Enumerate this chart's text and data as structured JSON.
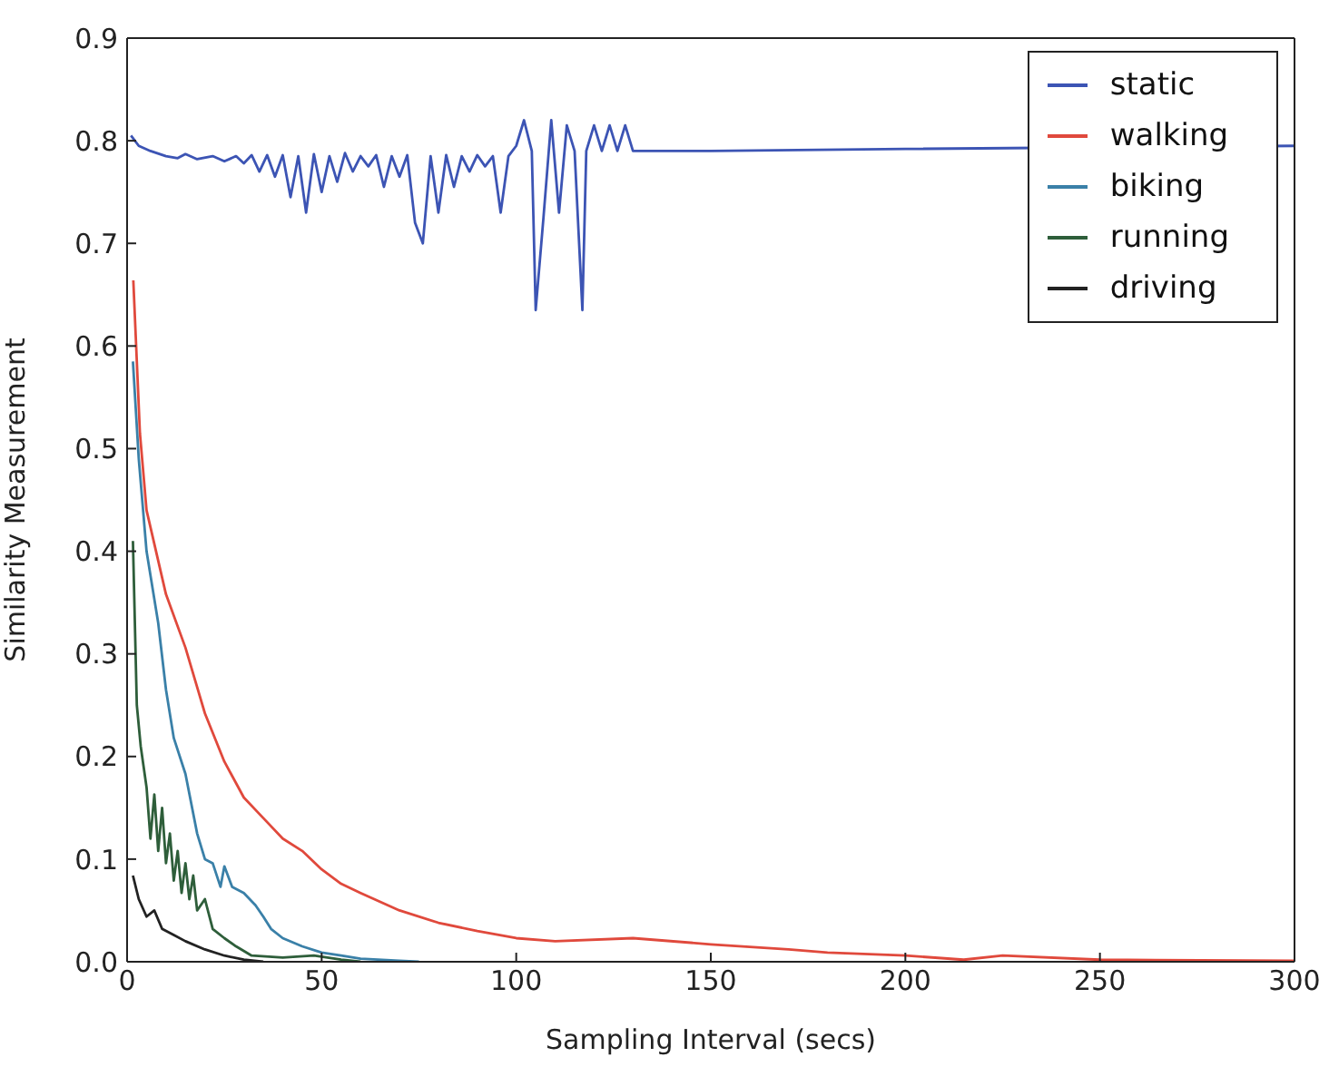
{
  "chart_data": {
    "type": "line",
    "xlabel": "Sampling Interval (secs)",
    "ylabel": "Similarity Measurement",
    "xlim": [
      0,
      300
    ],
    "xticks": [
      0,
      50,
      100,
      150,
      200,
      250,
      300
    ],
    "ylim": [
      0,
      0.9
    ],
    "yticks": [
      {
        "value": 0,
        "label": "0.0"
      },
      0.1,
      0.2,
      0.3,
      0.4,
      0.5,
      0.6,
      0.7,
      0.8,
      0.9
    ],
    "legend": "top right",
    "grid": false,
    "marker": "none",
    "series": [
      {
        "name": "static",
        "color": "#3c54b4",
        "x": [
          1,
          3,
          6,
          10,
          13,
          15,
          18,
          22,
          25,
          28,
          30,
          32,
          34,
          36,
          38,
          40,
          42,
          44,
          46,
          48,
          50,
          52,
          54,
          56,
          58,
          60,
          62,
          64,
          66,
          68,
          70,
          72,
          74,
          76,
          78,
          80,
          82,
          84,
          86,
          88,
          90,
          92,
          94,
          96,
          98,
          100,
          102,
          104,
          105,
          107,
          109,
          111,
          113,
          115,
          117,
          118,
          120,
          122,
          124,
          126,
          128,
          130,
          150,
          200,
          300
        ],
        "values": [
          0.805,
          0.795,
          0.79,
          0.785,
          0.783,
          0.787,
          0.782,
          0.785,
          0.78,
          0.785,
          0.778,
          0.786,
          0.77,
          0.786,
          0.765,
          0.786,
          0.745,
          0.785,
          0.73,
          0.787,
          0.75,
          0.785,
          0.76,
          0.788,
          0.77,
          0.785,
          0.775,
          0.786,
          0.755,
          0.785,
          0.765,
          0.786,
          0.72,
          0.7,
          0.785,
          0.73,
          0.786,
          0.755,
          0.785,
          0.77,
          0.786,
          0.775,
          0.785,
          0.73,
          0.785,
          0.795,
          0.82,
          0.79,
          0.635,
          0.725,
          0.82,
          0.73,
          0.815,
          0.79,
          0.635,
          0.79,
          0.815,
          0.79,
          0.815,
          0.79,
          0.815,
          0.79,
          0.79,
          0.792,
          0.795
        ]
      },
      {
        "name": "walking",
        "color": "#e0493c",
        "x": [
          1.6,
          3.3,
          5,
          10,
          15,
          20,
          25,
          30,
          35,
          40,
          45,
          50,
          55,
          60,
          70,
          80,
          90,
          100,
          110,
          130,
          150,
          170,
          180,
          200,
          215,
          225,
          250,
          300
        ],
        "values": [
          0.664,
          0.515,
          0.44,
          0.358,
          0.306,
          0.242,
          0.195,
          0.16,
          0.14,
          0.12,
          0.108,
          0.09,
          0.076,
          0.067,
          0.05,
          0.038,
          0.03,
          0.023,
          0.02,
          0.023,
          0.017,
          0.012,
          0.009,
          0.006,
          0.002,
          0.006,
          0.002,
          0.001
        ]
      },
      {
        "name": "biking",
        "color": "#3a80a8",
        "x": [
          1.5,
          3,
          5,
          8,
          10,
          12,
          15,
          18,
          20,
          22,
          24,
          25,
          27,
          30,
          33,
          35,
          37,
          40,
          45,
          50,
          55,
          60,
          70,
          75
        ],
        "values": [
          0.585,
          0.49,
          0.4,
          0.33,
          0.265,
          0.218,
          0.183,
          0.125,
          0.1,
          0.096,
          0.073,
          0.093,
          0.073,
          0.067,
          0.055,
          0.044,
          0.032,
          0.023,
          0.015,
          0.009,
          0.006,
          0.003,
          0.001,
          0.0
        ]
      },
      {
        "name": "running",
        "color": "#2e5e3a",
        "x": [
          1.5,
          2.5,
          3.5,
          5,
          6,
          7,
          8,
          9,
          10,
          11,
          12,
          13,
          14,
          15,
          16,
          17,
          18,
          20,
          22,
          25,
          28,
          32,
          40,
          48,
          55,
          60
        ],
        "values": [
          0.41,
          0.25,
          0.21,
          0.17,
          0.12,
          0.163,
          0.108,
          0.15,
          0.096,
          0.125,
          0.079,
          0.108,
          0.067,
          0.096,
          0.061,
          0.084,
          0.05,
          0.061,
          0.032,
          0.023,
          0.015,
          0.006,
          0.004,
          0.006,
          0.002,
          0.0
        ]
      },
      {
        "name": "driving",
        "color": "#222222",
        "x": [
          1.5,
          3,
          5,
          7,
          9,
          12,
          15,
          20,
          25,
          30,
          35
        ],
        "values": [
          0.084,
          0.061,
          0.044,
          0.05,
          0.032,
          0.026,
          0.02,
          0.012,
          0.006,
          0.002,
          0.0
        ]
      }
    ]
  }
}
